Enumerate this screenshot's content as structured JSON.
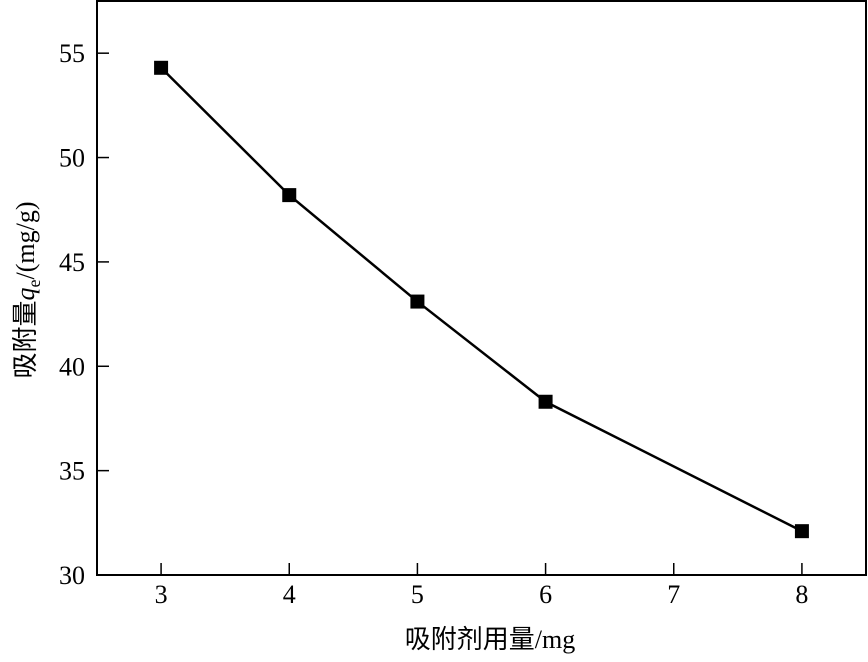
{
  "chart_data": {
    "type": "line",
    "title": "",
    "xlabel": "吸附剂用量/mg",
    "ylabel_prefix": "吸附量",
    "ylabel_symbol": "q",
    "ylabel_subscript": "e",
    "ylabel_unit": "/(mg/g)",
    "xlim": [
      2.5,
      8.5
    ],
    "ylim": [
      30,
      57.5
    ],
    "xticks": [
      3,
      4,
      5,
      6,
      7,
      8
    ],
    "yticks": [
      30,
      35,
      40,
      45,
      50,
      55
    ],
    "grid": false,
    "marker": "square",
    "color": "#000000",
    "series": [
      {
        "x": [
          3,
          4,
          5,
          6,
          8
        ],
        "y": [
          54.3,
          48.2,
          43.1,
          38.3,
          32.1
        ]
      }
    ]
  }
}
